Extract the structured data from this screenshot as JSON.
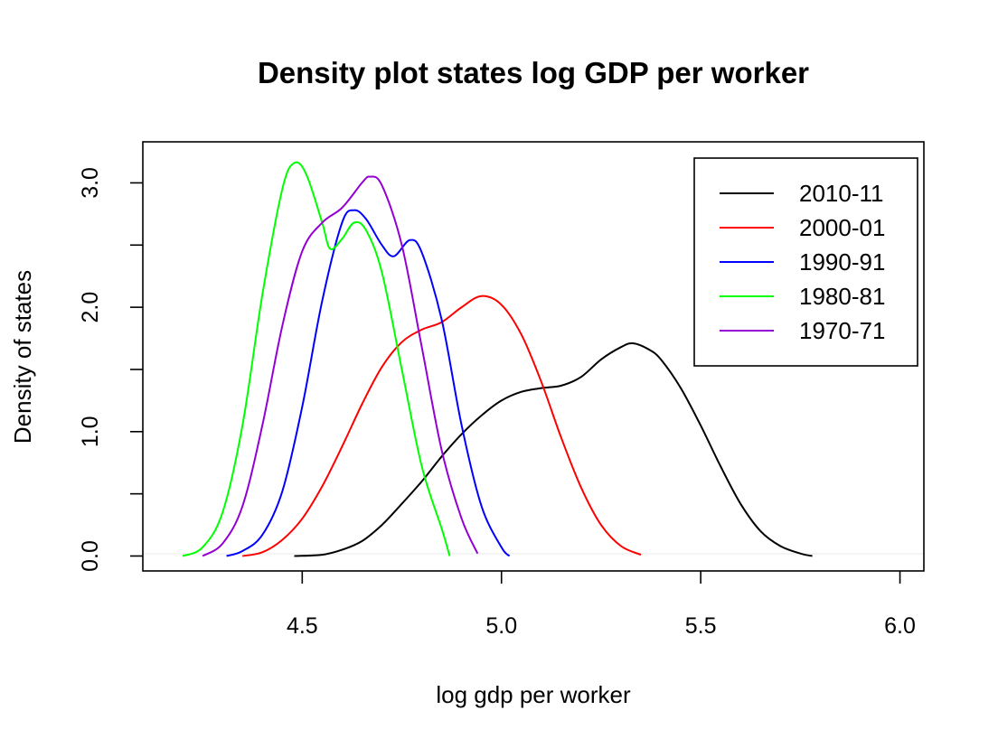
{
  "chart_data": {
    "type": "line",
    "title": "Density plot states log GDP per worker",
    "xlabel": "log gdp per worker",
    "ylabel": "Density of states",
    "xlim": [
      4.1,
      6.06
    ],
    "ylim": [
      -0.12,
      3.33
    ],
    "xticks": [
      4.5,
      5.0,
      5.5,
      6.0
    ],
    "xtick_labels": [
      "4.5",
      "5.0",
      "5.5",
      "6.0"
    ],
    "yticks": [
      0.0,
      0.5,
      1.0,
      1.5,
      2.0,
      2.5,
      3.0
    ],
    "ytick_labels": [
      "0.0",
      "",
      "1.0",
      "",
      "2.0",
      "",
      "3.0"
    ],
    "legend_position": "top-right",
    "series": [
      {
        "name": "2010-11",
        "color": "#000000",
        "points": [
          [
            4.48,
            0.0
          ],
          [
            4.55,
            0.01
          ],
          [
            4.6,
            0.05
          ],
          [
            4.65,
            0.12
          ],
          [
            4.7,
            0.25
          ],
          [
            4.75,
            0.42
          ],
          [
            4.8,
            0.6
          ],
          [
            4.85,
            0.8
          ],
          [
            4.9,
            0.98
          ],
          [
            4.95,
            1.13
          ],
          [
            5.0,
            1.25
          ],
          [
            5.05,
            1.32
          ],
          [
            5.1,
            1.35
          ],
          [
            5.15,
            1.37
          ],
          [
            5.2,
            1.44
          ],
          [
            5.25,
            1.58
          ],
          [
            5.3,
            1.68
          ],
          [
            5.33,
            1.71
          ],
          [
            5.37,
            1.66
          ],
          [
            5.4,
            1.58
          ],
          [
            5.45,
            1.35
          ],
          [
            5.5,
            1.05
          ],
          [
            5.55,
            0.72
          ],
          [
            5.6,
            0.42
          ],
          [
            5.65,
            0.2
          ],
          [
            5.7,
            0.08
          ],
          [
            5.75,
            0.02
          ],
          [
            5.78,
            0.0
          ]
        ]
      },
      {
        "name": "2000-01",
        "color": "#ff0000",
        "points": [
          [
            4.35,
            0.0
          ],
          [
            4.4,
            0.03
          ],
          [
            4.45,
            0.13
          ],
          [
            4.5,
            0.3
          ],
          [
            4.55,
            0.56
          ],
          [
            4.6,
            0.88
          ],
          [
            4.65,
            1.22
          ],
          [
            4.7,
            1.52
          ],
          [
            4.75,
            1.72
          ],
          [
            4.8,
            1.82
          ],
          [
            4.85,
            1.88
          ],
          [
            4.9,
            2.0
          ],
          [
            4.95,
            2.09
          ],
          [
            5.0,
            2.02
          ],
          [
            5.05,
            1.78
          ],
          [
            5.1,
            1.4
          ],
          [
            5.15,
            0.95
          ],
          [
            5.2,
            0.55
          ],
          [
            5.25,
            0.25
          ],
          [
            5.3,
            0.08
          ],
          [
            5.35,
            0.01
          ]
        ]
      },
      {
        "name": "1990-91",
        "color": "#0000ff",
        "points": [
          [
            4.31,
            0.0
          ],
          [
            4.35,
            0.04
          ],
          [
            4.4,
            0.17
          ],
          [
            4.45,
            0.52
          ],
          [
            4.5,
            1.2
          ],
          [
            4.55,
            2.05
          ],
          [
            4.6,
            2.68
          ],
          [
            4.63,
            2.78
          ],
          [
            4.66,
            2.71
          ],
          [
            4.7,
            2.5
          ],
          [
            4.73,
            2.41
          ],
          [
            4.77,
            2.54
          ],
          [
            4.8,
            2.44
          ],
          [
            4.85,
            1.9
          ],
          [
            4.9,
            1.05
          ],
          [
            4.95,
            0.4
          ],
          [
            5.0,
            0.07
          ],
          [
            5.02,
            0.0
          ]
        ]
      },
      {
        "name": "1980-81",
        "color": "#00ff00",
        "points": [
          [
            4.2,
            0.0
          ],
          [
            4.25,
            0.07
          ],
          [
            4.3,
            0.35
          ],
          [
            4.35,
            1.05
          ],
          [
            4.4,
            2.1
          ],
          [
            4.45,
            2.95
          ],
          [
            4.48,
            3.16
          ],
          [
            4.51,
            3.07
          ],
          [
            4.55,
            2.68
          ],
          [
            4.57,
            2.47
          ],
          [
            4.6,
            2.55
          ],
          [
            4.63,
            2.68
          ],
          [
            4.66,
            2.62
          ],
          [
            4.7,
            2.28
          ],
          [
            4.75,
            1.5
          ],
          [
            4.8,
            0.72
          ],
          [
            4.85,
            0.22
          ],
          [
            4.87,
            0.0
          ]
        ]
      },
      {
        "name": "1970-71",
        "color": "#9400d3",
        "points": [
          [
            4.25,
            0.0
          ],
          [
            4.3,
            0.1
          ],
          [
            4.35,
            0.4
          ],
          [
            4.4,
            1.05
          ],
          [
            4.45,
            1.85
          ],
          [
            4.5,
            2.45
          ],
          [
            4.55,
            2.68
          ],
          [
            4.6,
            2.8
          ],
          [
            4.65,
            3.0
          ],
          [
            4.67,
            3.05
          ],
          [
            4.7,
            2.98
          ],
          [
            4.75,
            2.5
          ],
          [
            4.8,
            1.68
          ],
          [
            4.85,
            0.85
          ],
          [
            4.9,
            0.3
          ],
          [
            4.94,
            0.02
          ]
        ]
      }
    ]
  }
}
